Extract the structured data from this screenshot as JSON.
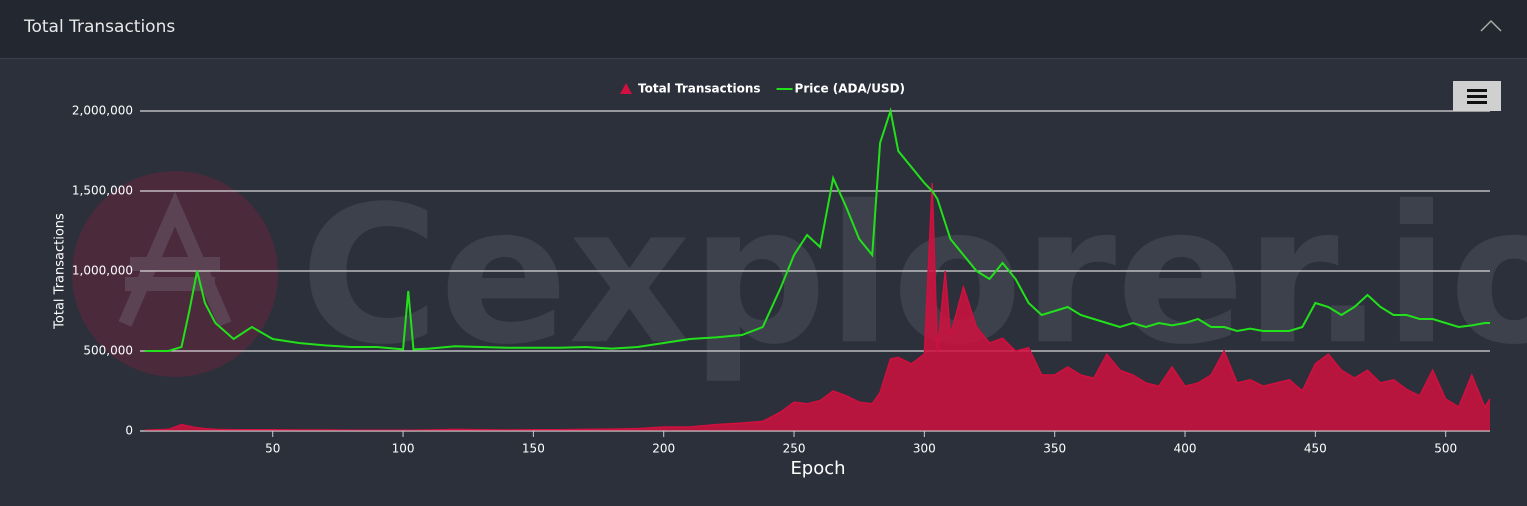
{
  "panel_title": "Total Transactions",
  "chart_data": {
    "type": "area-line",
    "y_axis_label": "Total Transactions",
    "x_axis_label": "Epoch",
    "watermark": "Cexplorer.io",
    "x": [
      1,
      10,
      15,
      18,
      21,
      24,
      28,
      35,
      42,
      50,
      60,
      70,
      80,
      90,
      100,
      102,
      104,
      110,
      120,
      130,
      140,
      150,
      160,
      170,
      180,
      190,
      200,
      210,
      220,
      230,
      238,
      245,
      250,
      255,
      260,
      265,
      270,
      275,
      280,
      283,
      287,
      290,
      295,
      300,
      303,
      305,
      308,
      310,
      315,
      320,
      325,
      330,
      335,
      340,
      345,
      350,
      355,
      360,
      365,
      370,
      375,
      380,
      385,
      390,
      395,
      400,
      405,
      410,
      415,
      420,
      425,
      430,
      435,
      440,
      445,
      450,
      455,
      460,
      465,
      470,
      475,
      480,
      485,
      490,
      495,
      500,
      505,
      510,
      515,
      517
    ],
    "series": [
      {
        "name": "Total Transactions",
        "color": "#d0103f",
        "values": [
          5000,
          10000,
          40000,
          30000,
          20000,
          15000,
          10000,
          8000,
          8000,
          8000,
          6000,
          6000,
          5000,
          5000,
          5000,
          5000,
          5000,
          6000,
          10000,
          8000,
          6000,
          8000,
          8000,
          10000,
          12000,
          15000,
          25000,
          25000,
          40000,
          50000,
          60000,
          120000,
          180000,
          170000,
          190000,
          250000,
          220000,
          180000,
          170000,
          240000,
          450000,
          460000,
          420000,
          480000,
          1550000,
          500000,
          1000000,
          600000,
          900000,
          650000,
          550000,
          580000,
          500000,
          520000,
          350000,
          350000,
          400000,
          350000,
          330000,
          480000,
          380000,
          350000,
          300000,
          280000,
          400000,
          280000,
          300000,
          350000,
          500000,
          300000,
          320000,
          280000,
          300000,
          320000,
          250000,
          420000,
          480000,
          380000,
          330000,
          380000,
          300000,
          320000,
          260000,
          220000,
          380000,
          200000,
          150000,
          350000,
          150000,
          200000
        ]
      },
      {
        "name": "Price (ADA/USD)",
        "color": "#22e01a",
        "axis": "y2",
        "values": [
          0.0,
          0.0,
          0.05,
          0.5,
          1.0,
          0.6,
          0.35,
          0.15,
          0.3,
          0.15,
          0.1,
          0.07,
          0.05,
          0.05,
          0.02,
          0.75,
          0.02,
          0.03,
          0.06,
          0.05,
          0.04,
          0.04,
          0.04,
          0.05,
          0.03,
          0.05,
          0.1,
          0.15,
          0.17,
          0.2,
          0.3,
          0.8,
          1.2,
          1.45,
          1.3,
          2.16,
          1.8,
          1.4,
          1.2,
          2.6,
          3.0,
          2.5,
          2.3,
          2.1,
          2.0,
          1.9,
          1.6,
          1.4,
          1.2,
          1.0,
          0.9,
          1.1,
          0.9,
          0.6,
          0.45,
          0.5,
          0.55,
          0.45,
          0.4,
          0.35,
          0.3,
          0.35,
          0.3,
          0.35,
          0.32,
          0.35,
          0.4,
          0.3,
          0.3,
          0.25,
          0.28,
          0.25,
          0.25,
          0.25,
          0.3,
          0.6,
          0.55,
          0.45,
          0.55,
          0.7,
          0.55,
          0.45,
          0.45,
          0.4,
          0.4,
          0.35,
          0.3,
          0.32,
          0.35,
          0.35
        ]
      }
    ],
    "xlim": [
      1,
      517
    ],
    "xticks": [
      50,
      100,
      150,
      200,
      250,
      300,
      350,
      400,
      450,
      500
    ],
    "ylim": [
      0,
      2000000
    ],
    "yticks": [
      0,
      {
        "value": 500000,
        "label": "500,000"
      },
      {
        "value": 1000000,
        "label": "1,000,000"
      },
      {
        "value": 1500000,
        "label": "1,500,000"
      },
      {
        "value": 2000000,
        "label": "2,000,000"
      }
    ],
    "y2lim": [
      -1,
      3
    ],
    "grid": true
  }
}
